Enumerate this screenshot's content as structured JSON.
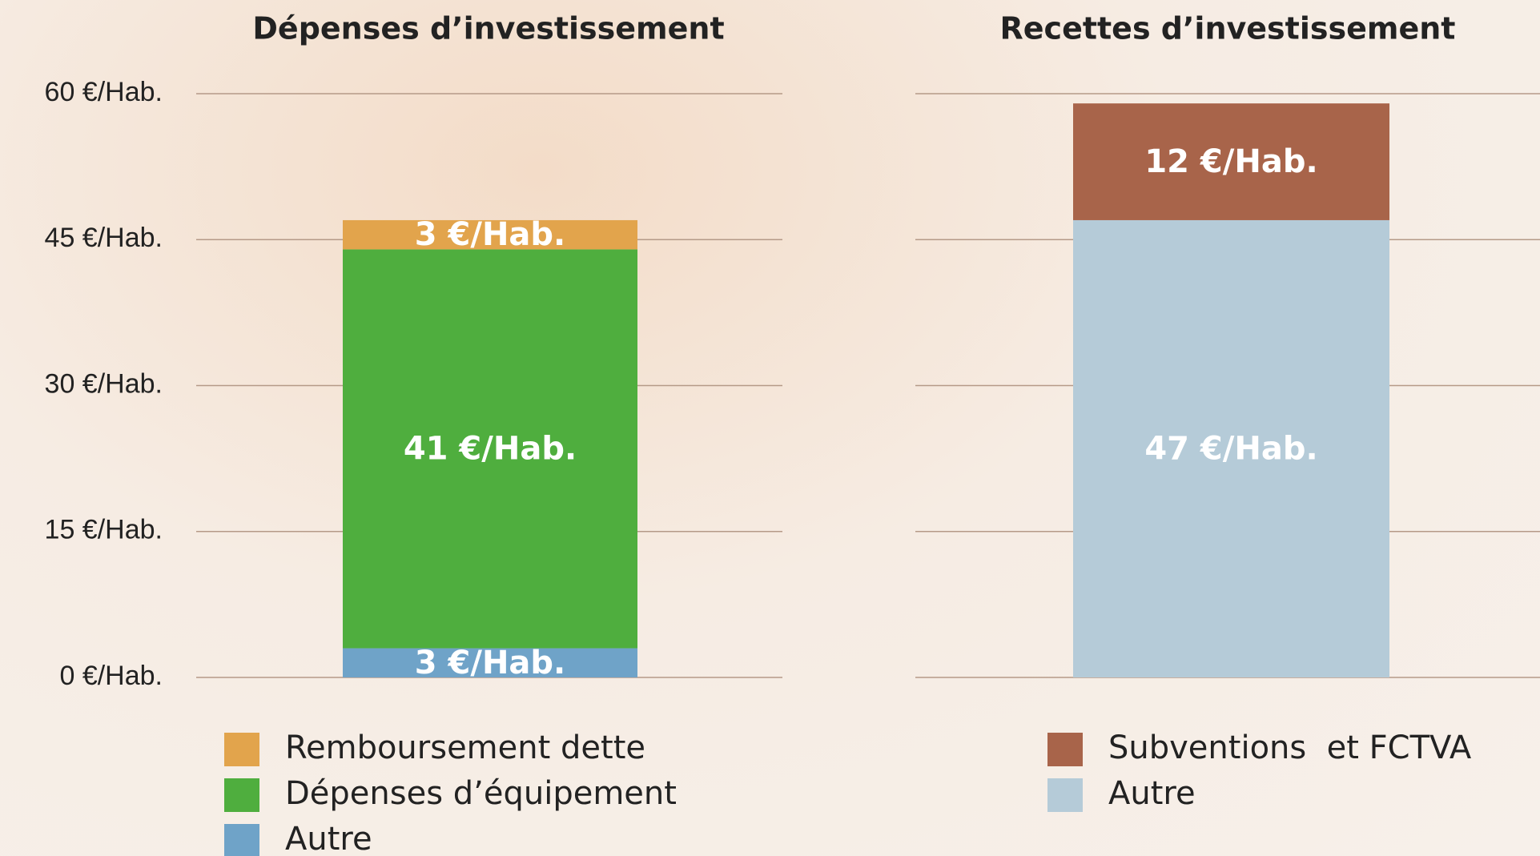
{
  "chart_data": [
    {
      "type": "stacked_bar",
      "title": "Dépenses d’investissement",
      "categories": [
        null
      ],
      "series": [
        {
          "name": "Autre",
          "color": "#6fa3c8",
          "values": [
            3
          ],
          "value_labels": [
            "3 €/Hab."
          ]
        },
        {
          "name": "Dépenses d’équipement",
          "color": "#4fae3e",
          "values": [
            41
          ],
          "value_labels": [
            "41 €/Hab."
          ]
        },
        {
          "name": "Remboursement dette",
          "color": "#e2a44c",
          "values": [
            3
          ],
          "value_labels": [
            "3 €/Hab."
          ]
        }
      ],
      "ylim": [
        0,
        60
      ],
      "yticks": [
        {
          "value": 0,
          "label": "0 €/Hab."
        },
        {
          "value": 15,
          "label": "15 €/Hab."
        },
        {
          "value": 30,
          "label": "30 €/Hab."
        },
        {
          "value": 45,
          "label": "45 €/Hab."
        },
        {
          "value": 60,
          "label": "60 €/Hab."
        }
      ],
      "grid": true
    },
    {
      "type": "stacked_bar",
      "title": "Recettes d’investissement",
      "categories": [
        null
      ],
      "series": [
        {
          "name": "Autre",
          "color": "#b5cbd8",
          "values": [
            47
          ],
          "value_labels": [
            "47 €/Hab."
          ]
        },
        {
          "name": "Subventions  et FCTVA",
          "color": "#a8644a",
          "values": [
            12
          ],
          "value_labels": [
            "12 €/Hab."
          ]
        }
      ],
      "ylim": [
        0,
        60
      ],
      "yticks": [
        0,
        15,
        30,
        45,
        60
      ],
      "grid": true
    }
  ]
}
